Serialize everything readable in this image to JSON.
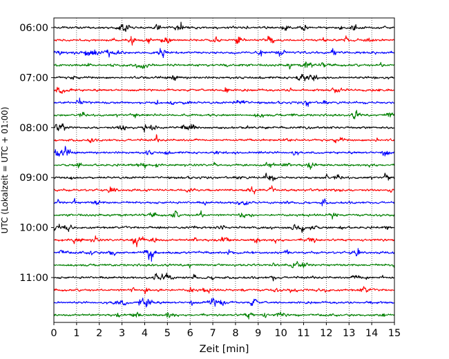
{
  "chart_data": {
    "type": "line",
    "title": "",
    "xlabel": "Zeit  [min]",
    "ylabel": "UTC (Lokalzeit = UTC + 01:00)",
    "xlim": [
      0,
      15
    ],
    "x_ticks": [
      "0",
      "1",
      "2",
      "3",
      "4",
      "5",
      "6",
      "7",
      "8",
      "9",
      "10",
      "11",
      "12",
      "13",
      "14",
      "15"
    ],
    "y_tick_labels": [
      "06:00",
      "07:00",
      "08:00",
      "09:00",
      "10:00",
      "11:00"
    ],
    "trace_interval_minutes": 15,
    "first_trace_utc": "06:00",
    "last_trace_utc": "11:45",
    "trace_count": 24,
    "trace_colors": [
      "#000000",
      "#ff0000",
      "#0000ff",
      "#008000"
    ],
    "grid": "vertical dotted lines at each minute",
    "legend": "none"
  }
}
